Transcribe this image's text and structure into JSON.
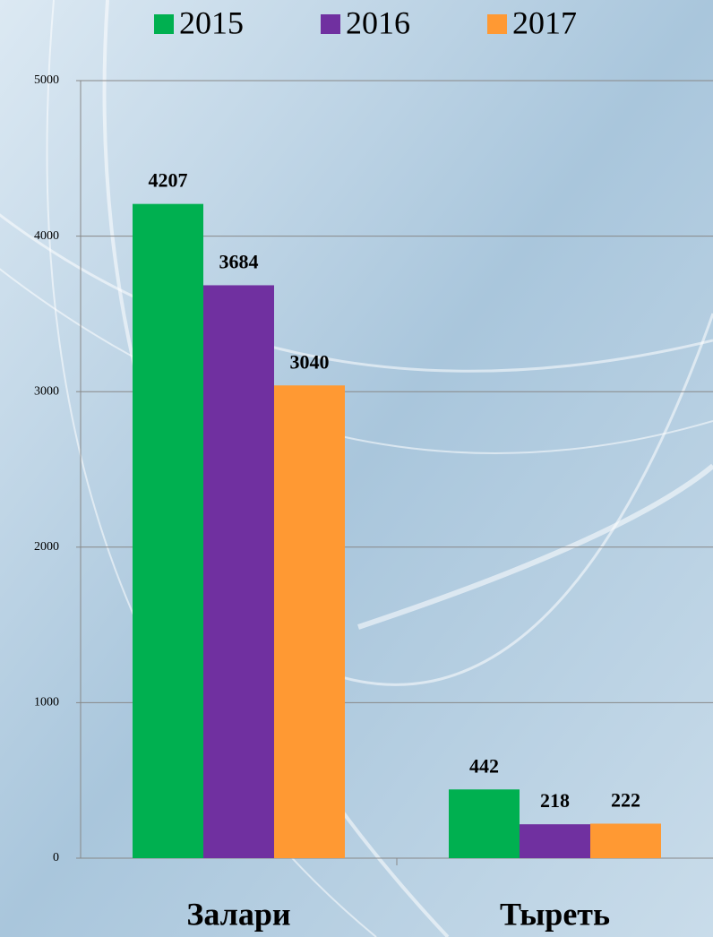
{
  "chart_data": {
    "type": "bar",
    "categories": [
      "Залари",
      "Тыреть"
    ],
    "series": [
      {
        "name": "2015",
        "color": "#00b050",
        "values": [
          4207,
          442
        ]
      },
      {
        "name": "2016",
        "color": "#7030a0",
        "values": [
          3684,
          218
        ]
      },
      {
        "name": "2017",
        "color": "#ff9933",
        "values": [
          3040,
          222
        ]
      }
    ],
    "ylim": [
      0,
      5000
    ],
    "yticks": [
      0,
      1000,
      2000,
      3000,
      4000,
      5000
    ],
    "grid": true,
    "legend": "top"
  }
}
